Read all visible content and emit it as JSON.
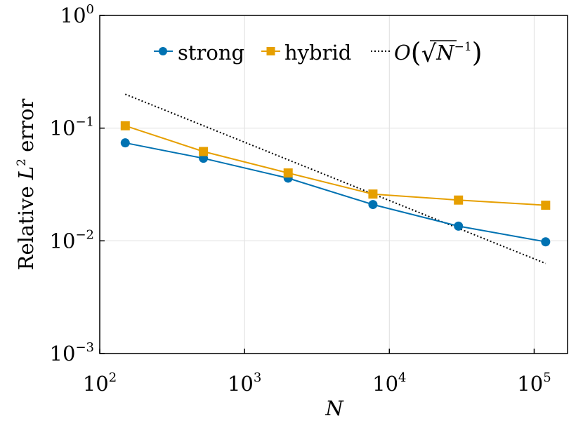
{
  "chart_data": {
    "type": "line",
    "xscale": "log",
    "yscale": "log",
    "xlim": [
      100,
      170000
    ],
    "ylim": [
      0.001,
      1
    ],
    "grid": true,
    "xlabel": "N",
    "ylabel_prefix": "Relative ",
    "ylabel_var": "L",
    "ylabel_sup": "2",
    "ylabel_suffix": " error",
    "x_ticks": [
      {
        "value": 100,
        "base": "10",
        "exp": "2"
      },
      {
        "value": 1000,
        "base": "10",
        "exp": "3"
      },
      {
        "value": 10000,
        "base": "10",
        "exp": "4"
      },
      {
        "value": 100000,
        "base": "10",
        "exp": "5"
      }
    ],
    "y_ticks": [
      {
        "value": 1,
        "base": "10",
        "exp": "0"
      },
      {
        "value": 0.1,
        "base": "10",
        "exp": "−1"
      },
      {
        "value": 0.01,
        "base": "10",
        "exp": "−2"
      },
      {
        "value": 0.001,
        "base": "10",
        "exp": "−3"
      }
    ],
    "legend_position": "top-center",
    "series": [
      {
        "name": "strong",
        "color": "#0072b2",
        "marker": "circle",
        "x": [
          150,
          520,
          2000,
          7700,
          30000,
          120000
        ],
        "y": [
          0.074,
          0.054,
          0.036,
          0.021,
          0.0135,
          0.0098
        ]
      },
      {
        "name": "hybrid",
        "color": "#e69f00",
        "marker": "square",
        "x": [
          150,
          520,
          2000,
          7700,
          30000,
          120000
        ],
        "y": [
          0.105,
          0.062,
          0.04,
          0.026,
          0.023,
          0.0207
        ]
      }
    ],
    "reference": {
      "label_o": "O",
      "label_var": "N",
      "label_exp": "−1",
      "style": "dotted",
      "color": "#000000",
      "x": [
        150,
        120000
      ],
      "y": [
        0.2,
        0.0063
      ]
    }
  }
}
